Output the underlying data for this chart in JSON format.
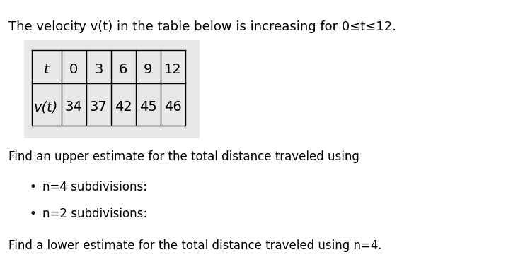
{
  "bg_color": "#ffffff",
  "table_bg_color": "#e8e8e8",
  "title_text": "The velocity v(t) in the table below is increasing for 0≤t≤12.",
  "t_values": [
    "0",
    "3",
    "6",
    "9",
    "12"
  ],
  "vt_values": [
    "34",
    "37",
    "42",
    "45",
    "46"
  ],
  "upper_estimate_text": "Find an upper estimate for the total distance traveled using",
  "bullet1": "n=4 subdivisions:",
  "bullet2": "n=2 subdivisions:",
  "lower_estimate_text": "Find a lower estimate for the total distance traveled using n=4.",
  "font_size_title": 13,
  "font_size_body": 12,
  "font_size_table": 14
}
